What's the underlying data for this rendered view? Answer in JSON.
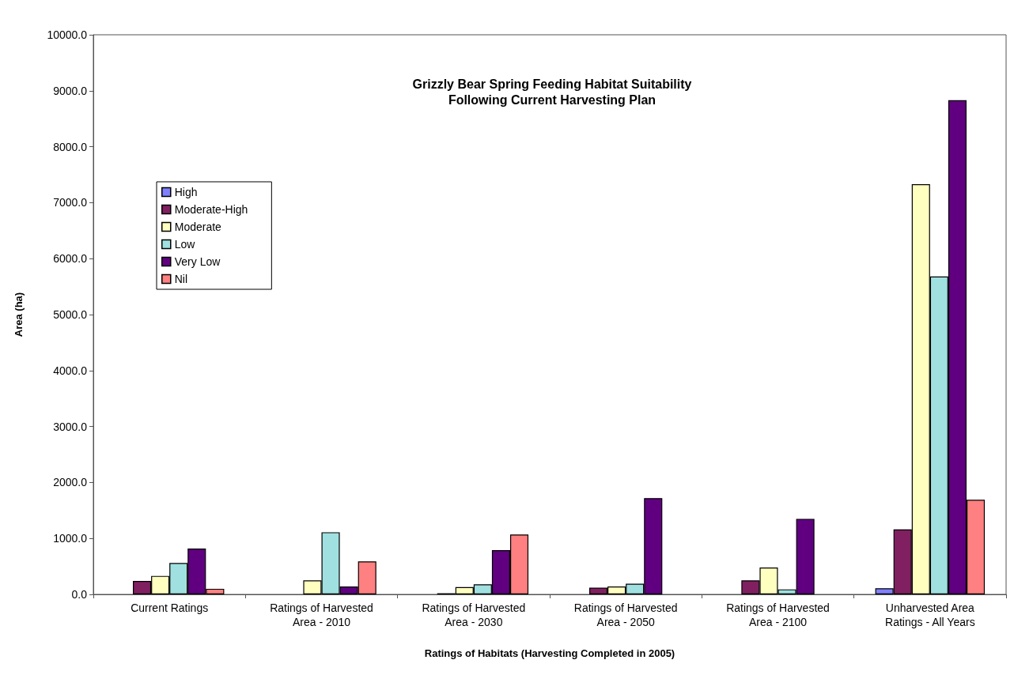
{
  "chart_data": {
    "type": "bar",
    "title": "Grizzly Bear Spring Feeding Habitat Suitability\nFollowing Current Harvesting Plan",
    "xlabel": "Ratings of Habitats (Harvesting Completed in 2005)",
    "ylabel": "Area (ha)",
    "categories": [
      "Current Ratings",
      "Ratings of Harvested\nArea - 2010",
      "Ratings of Harvested\nArea - 2030",
      "Ratings of Harvested\nArea - 2050",
      "Ratings of Harvested\nArea - 2100",
      "Unharvested Area\nRatings - All Years"
    ],
    "series": [
      {
        "name": "High",
        "color": "#8080ff",
        "values": [
          null,
          null,
          null,
          null,
          null,
          110
        ]
      },
      {
        "name": "Moderate-High",
        "color": "#802060",
        "values": [
          240,
          null,
          20,
          120,
          250,
          1160
        ]
      },
      {
        "name": "Moderate",
        "color": "#ffffc0",
        "values": [
          330,
          250,
          130,
          140,
          480,
          7330
        ]
      },
      {
        "name": "Low",
        "color": "#a0e0e0",
        "values": [
          560,
          1110,
          180,
          190,
          90,
          5680
        ]
      },
      {
        "name": "Very Low",
        "color": "#600080",
        "values": [
          820,
          140,
          790,
          1720,
          1350,
          8830
        ]
      },
      {
        "name": "Nil",
        "color": "#ff8080",
        "values": [
          100,
          590,
          1070,
          null,
          null,
          1690
        ]
      }
    ],
    "ylim": [
      0,
      10000
    ],
    "yticks": [
      {
        "value": 0,
        "label": "0.0"
      },
      {
        "value": 1000,
        "label": "1000.0"
      },
      {
        "value": 2000,
        "label": "2000.0"
      },
      {
        "value": 3000,
        "label": "3000.0"
      },
      {
        "value": 4000,
        "label": "4000.0"
      },
      {
        "value": 5000,
        "label": "5000.0"
      },
      {
        "value": 6000,
        "label": "6000.0"
      },
      {
        "value": 7000,
        "label": "7000.0"
      },
      {
        "value": 8000,
        "label": "8000.0"
      },
      {
        "value": 9000,
        "label": "9000.0"
      },
      {
        "value": 10000,
        "label": "10000.0"
      }
    ],
    "grid": false,
    "legend": "top left"
  }
}
